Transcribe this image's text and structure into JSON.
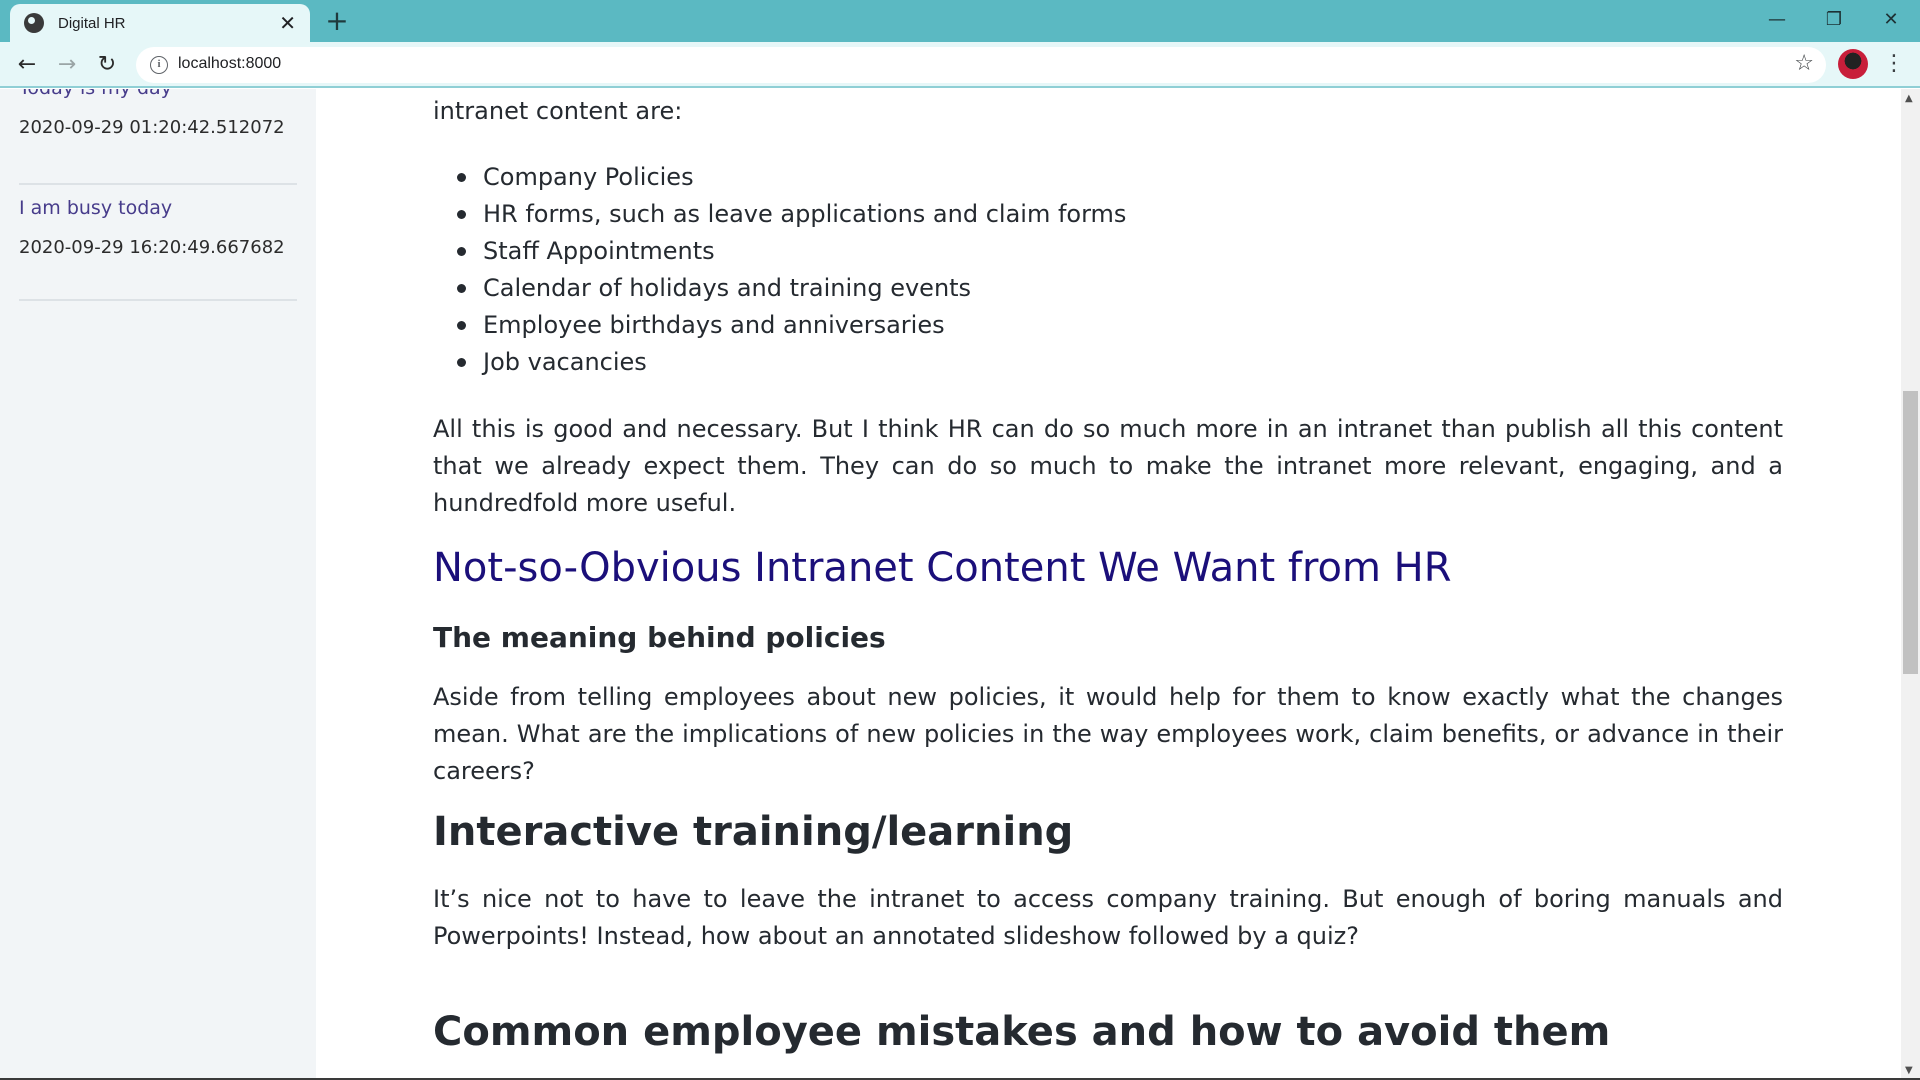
{
  "browser": {
    "tab_title": "Digital HR",
    "url": "localhost:8000"
  },
  "sidebar": {
    "posts": [
      {
        "title": "Today is my day",
        "date": "2020-09-29 01:20:42.512072"
      },
      {
        "title": "I am busy today",
        "date": "2020-09-29 16:20:49.667682"
      }
    ]
  },
  "article": {
    "intro_tail": "intranet content are:",
    "list_items": [
      "Company Policies",
      "HR forms, such as leave applications and claim forms",
      "Staff Appointments",
      "Calendar of holidays and training events",
      "Employee birthdays and anniversaries",
      "Job vacancies"
    ],
    "paragraph_1": "All this is good and necessary. But I think HR can do so much more in an intranet than publish all this content that we already expect them. They can do so much to make the intranet more relevant, engaging, and a hundredfold more useful.",
    "heading_not_obvious": "Not-so-Obvious Intranet Content We Want from HR",
    "subheading_policies": "The meaning behind policies",
    "paragraph_policies": "Aside from telling employees about new policies, it would help for them to know exactly what the changes mean. What are the implications of new policies in the way employees work, claim benefits, or advance in their careers?",
    "heading_training": "Interactive training/learning",
    "paragraph_training": "It’s nice not to have to leave the intranet to access company training. But enough of boring manuals and Powerpoints! Instead, how about an annotated slideshow followed by a quiz?",
    "heading_mistakes": "Common employee mistakes and how to avoid them"
  }
}
